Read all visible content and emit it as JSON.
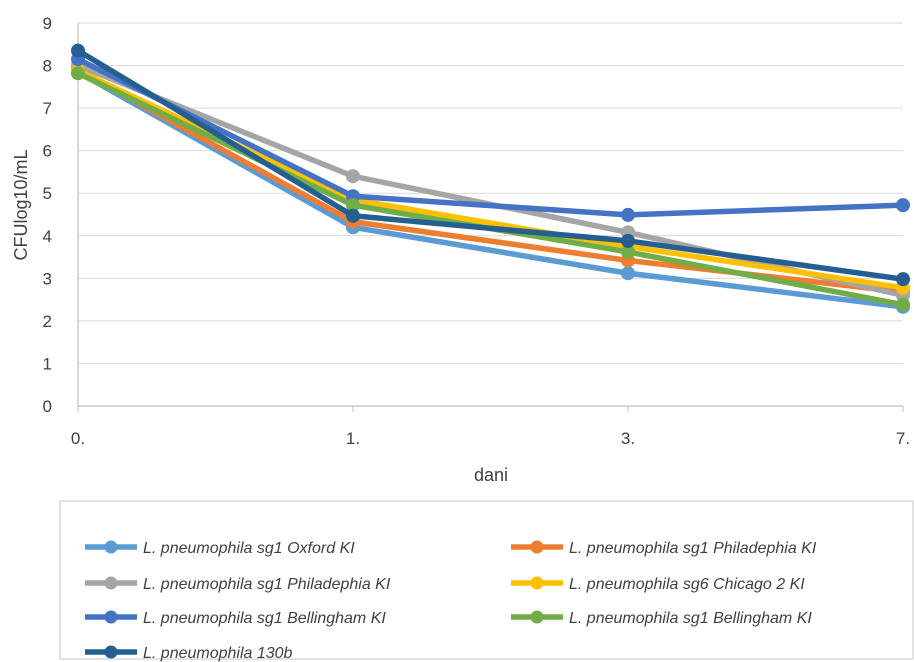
{
  "chart_data": {
    "type": "line",
    "title": "",
    "xlabel": "dani",
    "ylabel": "CFUlog10/mL",
    "categories": [
      "0.",
      "1.",
      "3.",
      "7."
    ],
    "ylim": [
      0,
      9
    ],
    "yticks": [
      0,
      1,
      2,
      3,
      4,
      5,
      6,
      7,
      8,
      9
    ],
    "grid": "horizontal",
    "legend": "bottom",
    "series": [
      {
        "name": "L. pneumophila sg1 Oxford KI",
        "color": "#5B9BD5",
        "values": [
          7.85,
          4.2,
          3.12,
          2.33
        ]
      },
      {
        "name": "L. pneumophila sg1 Philadephia KI",
        "color": "#ED7D31",
        "values": [
          7.9,
          4.33,
          3.42,
          2.68
        ]
      },
      {
        "name": "L. pneumophila sg1 Philadephia KI",
        "color": "#A5A5A5",
        "values": [
          8.0,
          5.4,
          4.08,
          2.6
        ]
      },
      {
        "name": "L. pneumophila sg6 Chicago 2 KI",
        "color": "#FFC000",
        "values": [
          7.88,
          4.85,
          3.75,
          2.78
        ]
      },
      {
        "name": "L. pneumophila sg1 Bellingham KI",
        "color": "#4472C4",
        "values": [
          8.15,
          4.93,
          4.49,
          4.72
        ]
      },
      {
        "name": "L. pneumophila sg1 Bellingham KI",
        "color": "#70AD47",
        "values": [
          7.82,
          4.72,
          3.62,
          2.38
        ]
      },
      {
        "name": "L. pneumophila 130b",
        "color": "#255E91",
        "values": [
          8.35,
          4.47,
          3.88,
          2.98
        ]
      }
    ]
  }
}
